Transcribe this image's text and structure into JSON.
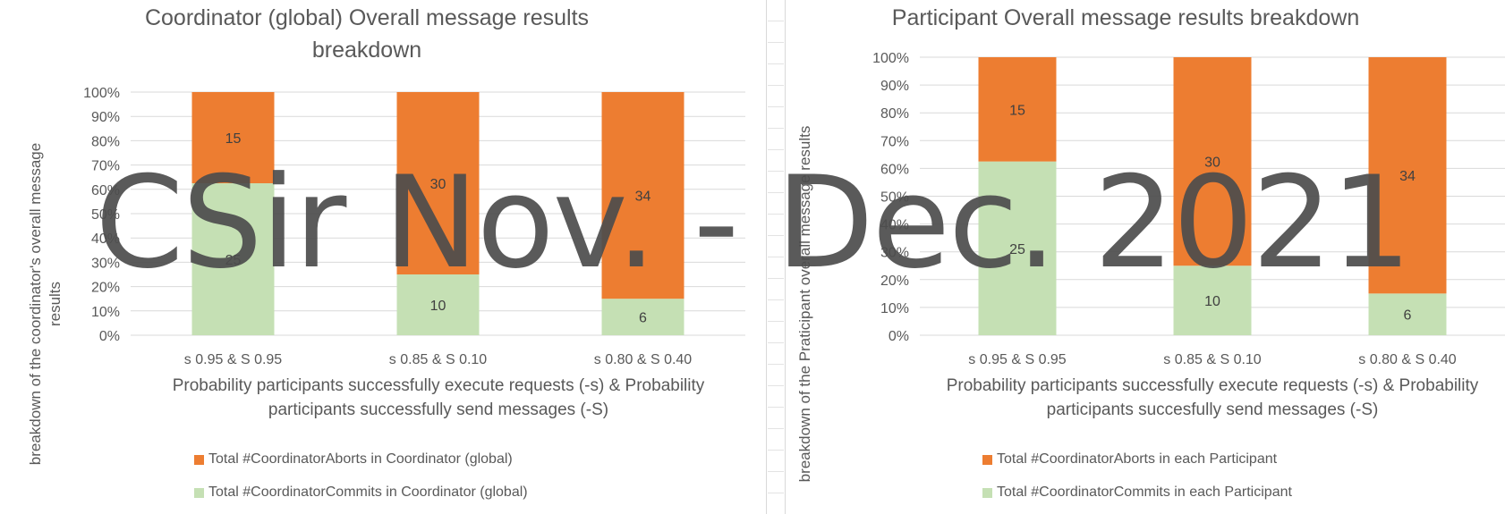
{
  "colors": {
    "aborts": "#ed7d31",
    "commits": "#c5e0b4",
    "grid": "#d9d9d9",
    "text": "#595959"
  },
  "watermark": "CSir Nov. - Dec. 2021",
  "chart_data": [
    {
      "type": "bar",
      "stacked": "percent",
      "title": "Coordinator (global) Overall message results breakdown",
      "xlabel": "Probability participants successfully execute requests (-s) & Probability participants successfully send messages (-S)",
      "ylabel": "breakdown of the coordinator's overall message results",
      "categories": [
        "s 0.95 & S 0.95",
        "s 0.85 & S 0.10",
        "s 0.80 & S 0.40"
      ],
      "yticks": [
        "0%",
        "10%",
        "20%",
        "30%",
        "40%",
        "50%",
        "60%",
        "70%",
        "80%",
        "90%",
        "100%"
      ],
      "ylim": [
        0,
        100
      ],
      "grid": true,
      "legend_position": "bottom",
      "series": [
        {
          "name": "Total #CoordinatorAborts in Coordinator (global)",
          "values": [
            15,
            30,
            34
          ],
          "color": "#ed7d31"
        },
        {
          "name": "Total #CoordinatorCommits in Coordinator (global)",
          "values": [
            25,
            10,
            6
          ],
          "color": "#c5e0b4"
        }
      ]
    },
    {
      "type": "bar",
      "stacked": "percent",
      "title": "Participant Overall message results breakdown",
      "xlabel": "Probability participants successfully execute requests (-s) & Probability participants succesfully send messages (-S)",
      "ylabel": "breakdown of the Praticipant overall message results",
      "categories": [
        "s 0.95 & S 0.95",
        "s 0.85 & S 0.10",
        "s 0.80 & S 0.40"
      ],
      "yticks": [
        "0%",
        "10%",
        "20%",
        "30%",
        "40%",
        "50%",
        "60%",
        "70%",
        "80%",
        "90%",
        "100%"
      ],
      "ylim": [
        0,
        100
      ],
      "grid": true,
      "legend_position": "bottom",
      "series": [
        {
          "name": "Total #CoordinatorAborts in each Participant",
          "values": [
            15,
            30,
            34
          ],
          "color": "#ed7d31"
        },
        {
          "name": "Total #CoordinatorCommits in each Participant",
          "values": [
            25,
            10,
            6
          ],
          "color": "#c5e0b4"
        }
      ]
    }
  ]
}
